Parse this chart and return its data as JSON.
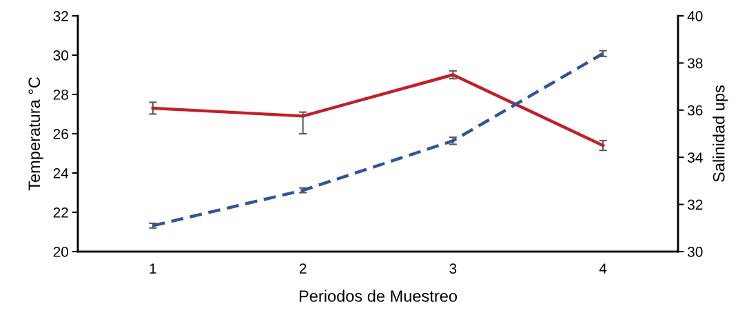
{
  "chart_data": {
    "type": "line",
    "xlabel": "Periodos de Muestreo",
    "ylabel": "Temperatura °C",
    "y2label": "Salinidad ups",
    "categories": [
      "1",
      "2",
      "3",
      "4"
    ],
    "series": [
      {
        "color": "#c0202a",
        "line_style": "solid",
        "values": [
          27.3,
          26.9,
          29.0,
          25.4
        ],
        "errors": [
          0.3,
          [
            26.0,
            27.1
          ],
          0.2,
          0.25
        ]
      },
      {
        "color": "#2f5597",
        "line_style": "dashed",
        "axis": "y2",
        "values": [
          31.1,
          32.6,
          34.7,
          38.4
        ],
        "errors": [
          0.1,
          0.1,
          0.15,
          0.12
        ]
      }
    ],
    "ylim": [
      20,
      32
    ],
    "yticks": [
      20,
      22,
      24,
      26,
      28,
      30,
      32
    ],
    "y2lim": [
      30,
      40
    ],
    "y2ticks": [
      30,
      32,
      34,
      36,
      38,
      40
    ],
    "grid": false,
    "legend": false,
    "marker": "none"
  }
}
